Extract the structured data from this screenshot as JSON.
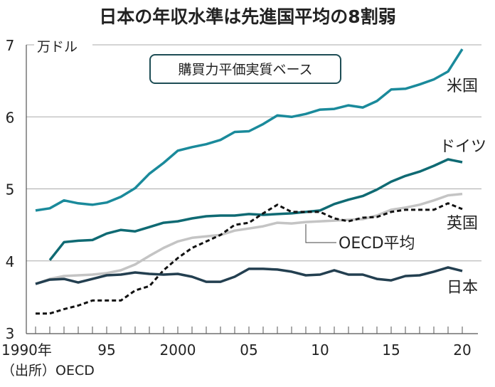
{
  "chart_data": {
    "type": "line",
    "title": "日本の年収水準は先進国平均の8割弱",
    "subtitle": "購買力平価実質ベース",
    "ylabel": "万ドル",
    "source": "（出所）OECD",
    "ylim": [
      3,
      7
    ],
    "yticks": [
      3,
      4,
      5,
      6,
      7
    ],
    "xlim": [
      1990,
      2020
    ],
    "xtick_labels": [
      {
        "year": 1990,
        "label": "1990年"
      },
      {
        "year": 1995,
        "label": "95"
      },
      {
        "year": 2000,
        "label": "2000"
      },
      {
        "year": 2005,
        "label": "05"
      },
      {
        "year": 2010,
        "label": "10"
      },
      {
        "year": 2015,
        "label": "15"
      },
      {
        "year": 2020,
        "label": "20"
      }
    ],
    "grid": true,
    "series": [
      {
        "name": "米国",
        "color": "#1a8a9b",
        "style": "solid",
        "start": 1990,
        "values": [
          4.7,
          4.73,
          4.84,
          4.8,
          4.78,
          4.81,
          4.89,
          5.01,
          5.21,
          5.36,
          5.53,
          5.58,
          5.62,
          5.68,
          5.79,
          5.8,
          5.9,
          6.02,
          6.0,
          6.04,
          6.1,
          6.11,
          6.16,
          6.13,
          6.22,
          6.38,
          6.39,
          6.45,
          6.52,
          6.63,
          6.94
        ]
      },
      {
        "name": "ドイツ",
        "color": "#0f6a73",
        "style": "solid",
        "start": 1991,
        "values": [
          4.01,
          4.26,
          4.28,
          4.29,
          4.38,
          4.43,
          4.41,
          4.47,
          4.53,
          4.55,
          4.59,
          4.62,
          4.63,
          4.63,
          4.65,
          4.64,
          4.65,
          4.66,
          4.68,
          4.7,
          4.79,
          4.85,
          4.9,
          4.99,
          5.1,
          5.18,
          5.24,
          5.32,
          5.41,
          5.37
        ]
      },
      {
        "name": "OECD平均",
        "color": "#c4c4c4",
        "style": "solid",
        "start": 1990,
        "values": [
          3.68,
          3.75,
          3.79,
          3.8,
          3.81,
          3.83,
          3.87,
          3.95,
          4.07,
          4.18,
          4.27,
          4.32,
          4.34,
          4.36,
          4.42,
          4.45,
          4.48,
          4.53,
          4.52,
          4.54,
          4.55,
          4.56,
          4.57,
          4.58,
          4.63,
          4.71,
          4.74,
          4.78,
          4.84,
          4.91,
          4.93
        ]
      },
      {
        "name": "英国",
        "color": "#111111",
        "style": "dashed",
        "start": 1990,
        "values": [
          3.27,
          3.27,
          3.33,
          3.38,
          3.45,
          3.45,
          3.45,
          3.59,
          3.65,
          3.87,
          4.04,
          4.18,
          4.27,
          4.36,
          4.5,
          4.53,
          4.66,
          4.78,
          4.68,
          4.68,
          4.68,
          4.59,
          4.55,
          4.6,
          4.61,
          4.68,
          4.71,
          4.71,
          4.71,
          4.8,
          4.72
        ]
      },
      {
        "name": "日本",
        "color": "#233f50",
        "style": "solid",
        "start": 1990,
        "values": [
          3.68,
          3.74,
          3.75,
          3.7,
          3.75,
          3.8,
          3.81,
          3.84,
          3.82,
          3.81,
          3.82,
          3.78,
          3.71,
          3.71,
          3.78,
          3.89,
          3.89,
          3.88,
          3.85,
          3.8,
          3.81,
          3.87,
          3.81,
          3.81,
          3.75,
          3.73,
          3.79,
          3.8,
          3.85,
          3.91,
          3.86
        ]
      }
    ]
  }
}
